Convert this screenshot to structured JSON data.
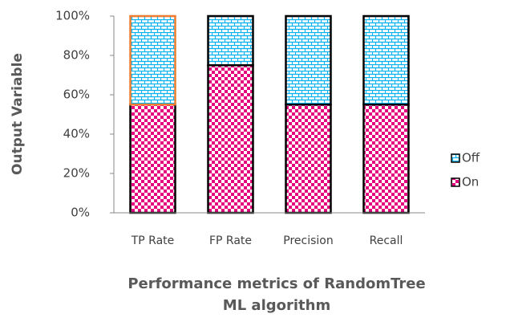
{
  "chart_data": {
    "type": "stacked_bar",
    "categories": [
      "TP Rate",
      "FP Rate",
      "Precision",
      "Recall"
    ],
    "series": [
      {
        "name": "On",
        "color": "#e6007e",
        "values": [
          55,
          75,
          55,
          55
        ]
      },
      {
        "name": "Off",
        "color": "#00b0f0",
        "values": [
          45,
          25,
          45,
          45
        ]
      }
    ],
    "ylim": [
      0,
      100
    ],
    "yticks": [
      {
        "value": 0,
        "label": "0%"
      },
      {
        "value": 20,
        "label": "20%"
      },
      {
        "value": 40,
        "label": "40%"
      },
      {
        "value": 60,
        "label": "60%"
      },
      {
        "value": 80,
        "label": "80%"
      },
      {
        "value": 100,
        "label": "100%"
      }
    ],
    "y_label": "Output Variable",
    "x_label": "Performance metrics of RandomTree ML algorithm",
    "legend": "right"
  }
}
